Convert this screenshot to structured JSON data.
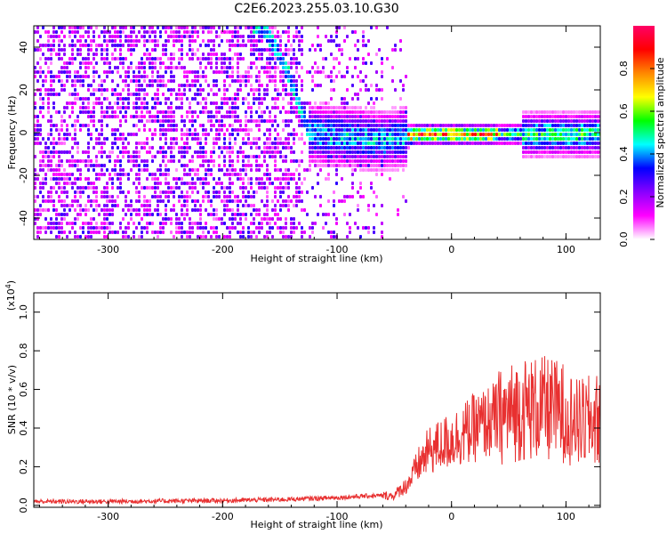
{
  "title": "C2E6.2023.255.03.10.G30",
  "chart_data": [
    {
      "type": "heatmap",
      "xlabel": "Height of straight line (km)",
      "ylabel": "Frequency (Hz)",
      "xlim": [
        -365,
        130
      ],
      "ylim": [
        -50,
        50
      ],
      "xticks": [
        -300,
        -200,
        -100,
        0,
        100
      ],
      "yticks": [
        -40,
        -20,
        0,
        20,
        40
      ],
      "colorbar": {
        "label": "Normalized spectral amplitude",
        "range": [
          0.0,
          1.0
        ],
        "ticks": [
          0.0,
          0.2,
          0.4,
          0.6,
          0.8
        ],
        "colors": [
          "#ffffff",
          "#ff00ff",
          "#8800ff",
          "#0000ff",
          "#00ffff",
          "#00ff00",
          "#ffff00",
          "#ff8800",
          "#ff0000",
          "#ff0066"
        ]
      },
      "features": [
        {
          "name": "spectral line",
          "x": [
            -120,
            -60,
            -30,
            0,
            50,
            100,
            130
          ],
          "y": [
            0,
            -3,
            0,
            0,
            0,
            0,
            0
          ]
        },
        {
          "name": "sweep",
          "x": [
            -165,
            -145,
            -125
          ],
          "y": [
            50,
            30,
            0
          ]
        }
      ]
    },
    {
      "type": "line",
      "xlabel": "Height of straight line (km)",
      "ylabel": "SNR (10 * v/v)",
      "yscale_label": "(x10",
      "yscale_exp": "4",
      "yscale_close": ")",
      "xlim": [
        -365,
        130
      ],
      "ylim": [
        -0.01,
        1.1
      ],
      "xticks": [
        -300,
        -200,
        -100,
        0,
        100
      ],
      "yticks": [
        0.0,
        0.2,
        0.4,
        0.6,
        0.8,
        1.0
      ],
      "ytick_labels": [
        "0.0",
        "0.2",
        "0.4",
        "0.6",
        "0.8",
        "1.0"
      ],
      "series": [
        {
          "color": "#e83030",
          "x": [
            -365,
            -300,
            -200,
            -150,
            -100,
            -70,
            -50,
            -45,
            -40,
            -35,
            -30,
            -20,
            0,
            20,
            40,
            60,
            80,
            100,
            110,
            130
          ],
          "y": [
            0.02,
            0.02,
            0.025,
            0.03,
            0.04,
            0.05,
            0.05,
            0.08,
            0.1,
            0.14,
            0.2,
            0.28,
            0.34,
            0.4,
            0.45,
            0.5,
            0.5,
            0.48,
            0.42,
            0.45
          ]
        }
      ]
    }
  ]
}
